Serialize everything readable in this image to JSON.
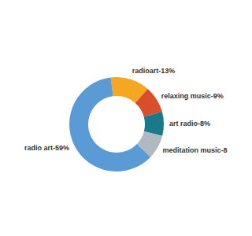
{
  "chart_data": {
    "type": "donut",
    "values": [
      13,
      9,
      8,
      8,
      59
    ],
    "value_labels": [
      "radioart-13%",
      "relaxing music-9%",
      "art radio-8%",
      "meditation music-8",
      "radio art-59%"
    ],
    "colors": [
      "#f5a623",
      "#d94f2b",
      "#1a7a8a",
      "#b0b8c1",
      "#5b9bd5"
    ],
    "data_labels": true
  }
}
